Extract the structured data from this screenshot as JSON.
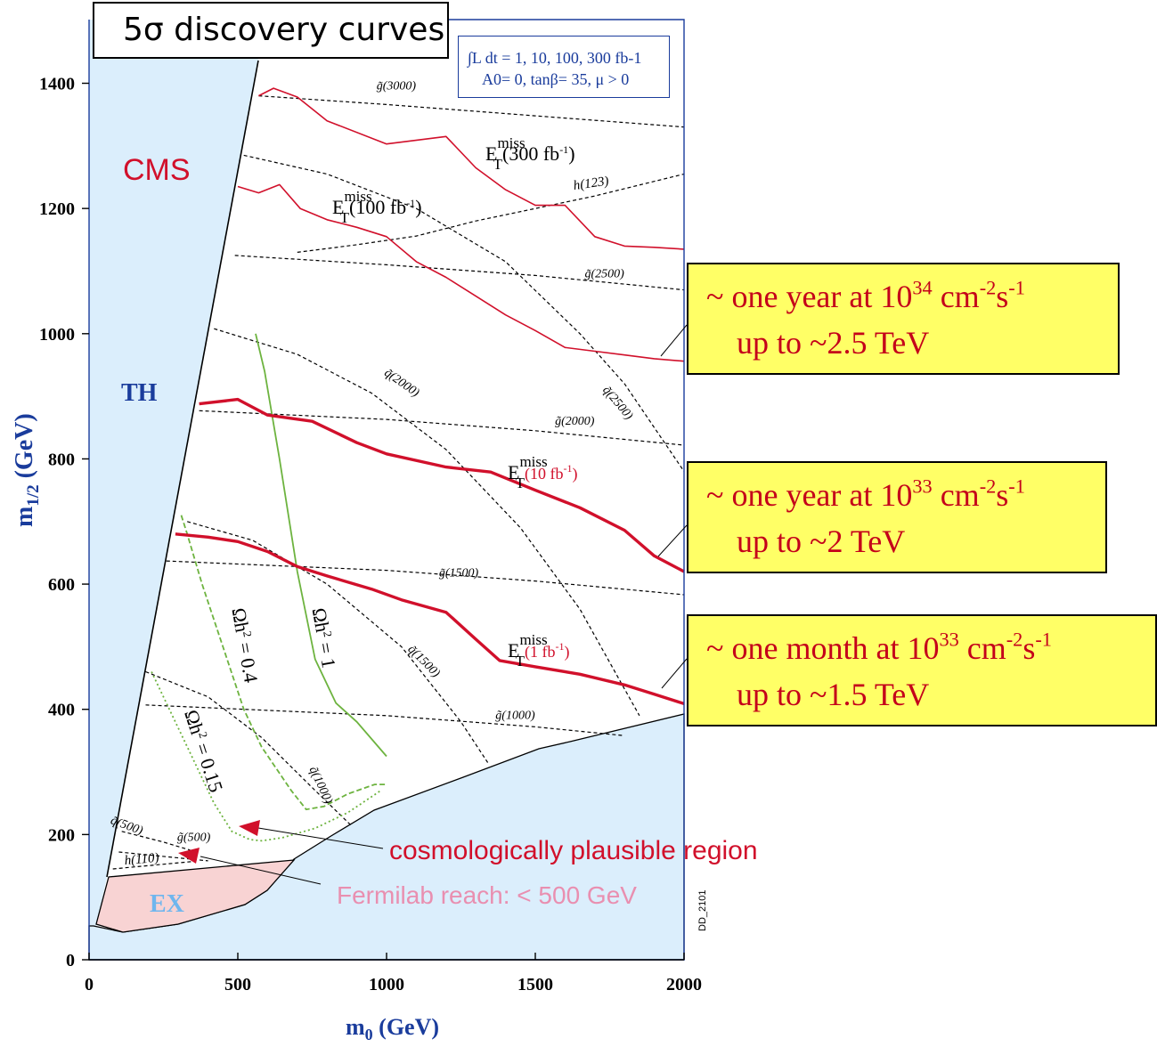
{
  "title": "5σ discovery curves",
  "params": {
    "line1": "∫L dt = 1, 10, 100, 300 fb-1",
    "line2": "A0= 0, tanβ= 35, μ > 0"
  },
  "notes": [
    {
      "line1_prefix": "~ one year at 10",
      "line1_exp": "34",
      "line1_suffix": " cm",
      "line1_exp2": "-2",
      "line1_end": "s",
      "line1_exp3": "-1",
      "line2": "up to ~2.5 TeV"
    },
    {
      "line1_prefix": "~ one year at 10",
      "line1_exp": "33",
      "line1_suffix": " cm",
      "line1_exp2": "-2",
      "line1_end": "s",
      "line1_exp3": "-1",
      "line2": "up to ~2 TeV"
    },
    {
      "line1_prefix": "~ one month at 10",
      "line1_exp": "33",
      "line1_suffix": "  cm",
      "line1_exp2": "-2",
      "line1_end": "s",
      "line1_exp3": "-1",
      "line2": "up to ~1.5 TeV"
    }
  ],
  "colors": {
    "blue_region": "#dbeefc",
    "pink_region": "#f8d3d3",
    "red_curve": "#d1102b",
    "green_curve": "#6db33f",
    "axis_label": "#1a3c9c",
    "note_fill": "#ffff66",
    "note_text": "#c4001a"
  },
  "chart_data": {
    "type": "line",
    "xlabel": "m0 (GeV)",
    "ylabel": "m1/2 (GeV)",
    "xlim": [
      0,
      2000
    ],
    "ylim": [
      0,
      1400
    ],
    "xticks": [
      "0",
      "500",
      "1000",
      "1500",
      "2000"
    ],
    "yticks": [
      "0",
      "200",
      "400",
      "600",
      "800",
      "1000",
      "1200",
      "1400"
    ],
    "region_labels": {
      "cms": "CMS",
      "th": "TH",
      "ex": "EX",
      "code": "DD_2101"
    },
    "annotations": {
      "cosmo": "cosmologically plausible region",
      "fermilab": "Fermilab reach: < 500 GeV"
    },
    "discovery_curves": [
      {
        "lumi": "300 fb-1",
        "label_main": "E",
        "label_sup": "miss",
        "label_sub": "T",
        "label_lumi": "(300 fb",
        "label_lumi_exp": "-1",
        "label_close": ")",
        "x": [
          570,
          620,
          700,
          800,
          1000,
          1200,
          1300,
          1400,
          1500,
          1600,
          1700,
          1800,
          1900,
          2000
        ],
        "y": [
          1380,
          1392,
          1378,
          1340,
          1303,
          1315,
          1265,
          1230,
          1205,
          1205,
          1155,
          1140,
          1138,
          1135
        ]
      },
      {
        "lumi": "100 fb-1",
        "label_main": "E",
        "label_sup": "miss",
        "label_sub": "T",
        "label_lumi": "(100 fb",
        "label_lumi_exp": "-1",
        "label_close": ")",
        "x": [
          500,
          570,
          640,
          710,
          800,
          900,
          1000,
          1100,
          1200,
          1300,
          1400,
          1500,
          1600,
          1700,
          1800,
          1900,
          2000
        ],
        "y": [
          1235,
          1225,
          1238,
          1200,
          1182,
          1170,
          1155,
          1115,
          1090,
          1060,
          1030,
          1005,
          978,
          972,
          966,
          960,
          956
        ]
      },
      {
        "lumi": "10 fb-1",
        "label_main": "E",
        "label_sup": "miss",
        "label_sub": "T",
        "label_lumi": "(10 fb",
        "label_lumi_exp": "-1",
        "label_close": ")",
        "x": [
          370,
          500,
          600,
          750,
          900,
          1000,
          1200,
          1350,
          1500,
          1650,
          1800,
          1900,
          2000
        ],
        "y": [
          888,
          895,
          870,
          860,
          826,
          808,
          787,
          779,
          750,
          722,
          686,
          645,
          620
        ]
      },
      {
        "lumi": "1 fb-1",
        "label_main": "E",
        "label_sup": "miss",
        "label_sub": "T",
        "label_lumi": "(1 fb",
        "label_lumi_exp": "-1",
        "label_close": ")",
        "x": [
          290,
          400,
          500,
          600,
          700,
          800,
          950,
          1050,
          1200,
          1300,
          1380,
          1500,
          1650,
          1800,
          1900,
          2000
        ],
        "y": [
          680,
          675,
          668,
          652,
          628,
          613,
          592,
          575,
          555,
          512,
          478,
          468,
          456,
          439,
          424,
          409
        ]
      }
    ],
    "gluino_contours": [
      {
        "label": "g̃(3000)",
        "x": [
          570,
          1000,
          1500,
          2000
        ],
        "y": [
          1380,
          1366,
          1348,
          1330
        ]
      },
      {
        "label": "g̃(2500)",
        "x": [
          490,
          1000,
          1500,
          2000
        ],
        "y": [
          1125,
          1110,
          1093,
          1070
        ]
      },
      {
        "label": "g̃(2000)",
        "x": [
          370,
          1000,
          1500,
          2000
        ],
        "y": [
          877,
          863,
          845,
          822
        ]
      },
      {
        "label": "g̃(1500)",
        "x": [
          260,
          1000,
          1500,
          2000
        ],
        "y": [
          637,
          622,
          605,
          583
        ]
      },
      {
        "label": "g̃(1000)",
        "x": [
          190,
          1000,
          1500,
          1800
        ],
        "y": [
          407,
          390,
          372,
          358
        ]
      },
      {
        "label": "g̃(500)",
        "x": [
          100,
          400
        ],
        "y": [
          172,
          158
        ]
      }
    ],
    "squark_contours": [
      {
        "label": "q̃(2500)",
        "x": [
          520,
          800,
          1100,
          1400,
          1650,
          1800,
          2000
        ],
        "y": [
          1285,
          1255,
          1200,
          1115,
          1000,
          920,
          780
        ]
      },
      {
        "label": "q̃(2000)",
        "x": [
          420,
          700,
          950,
          1200,
          1450,
          1650,
          1850
        ],
        "y": [
          1008,
          967,
          905,
          815,
          690,
          560,
          390
        ]
      },
      {
        "label": "q̃(1500)",
        "x": [
          330,
          550,
          800,
          1050,
          1250,
          1340
        ],
        "y": [
          700,
          670,
          600,
          500,
          380,
          315
        ]
      },
      {
        "label": "q̃(1000)",
        "x": [
          190,
          400,
          580,
          750,
          880
        ],
        "y": [
          460,
          420,
          355,
          275,
          215
        ]
      },
      {
        "label": "q̃(500)",
        "x": [
          110,
          250,
          340
        ],
        "y": [
          205,
          188,
          175
        ]
      }
    ],
    "higgs_contours": [
      {
        "label": "h(123)",
        "x": [
          700,
          900,
          1100,
          1300,
          1500,
          1700,
          2000
        ],
        "y": [
          1130,
          1142,
          1156,
          1180,
          1200,
          1220,
          1255
        ]
      },
      {
        "label": "h(110)",
        "x": [
          80,
          350
        ],
        "y": [
          145,
          157
        ]
      }
    ],
    "relic_density": [
      {
        "label_pre": "Ωh",
        "label_exp": "2",
        "label_post": " = 1",
        "style": "solid",
        "x": [
          560,
          590,
          640,
          700,
          760,
          830,
          900,
          1000
        ],
        "y": [
          1000,
          940,
          800,
          620,
          480,
          410,
          380,
          325
        ]
      },
      {
        "label_pre": "Ωh",
        "label_exp": "2",
        "label_post": " = 0.4",
        "style": "dashed",
        "x": [
          310,
          330,
          380,
          450,
          520,
          580,
          680,
          730,
          790,
          870,
          960,
          1000
        ],
        "y": [
          710,
          680,
          600,
          500,
          400,
          340,
          270,
          240,
          245,
          265,
          280,
          280
        ]
      },
      {
        "label_pre": "Ωh",
        "label_exp": "2",
        "label_post": " = 0.15",
        "style": "dotted",
        "x": [
          210,
          230,
          280,
          340,
          420,
          480,
          540,
          580,
          650,
          760,
          870,
          980
        ],
        "y": [
          460,
          440,
          390,
          330,
          250,
          205,
          192,
          190,
          195,
          210,
          235,
          270
        ]
      }
    ],
    "th_boundary": {
      "x": [
        0,
        600
      ],
      "y": [
        1500,
        1500
      ]
    },
    "legend": "none",
    "grid": false
  }
}
